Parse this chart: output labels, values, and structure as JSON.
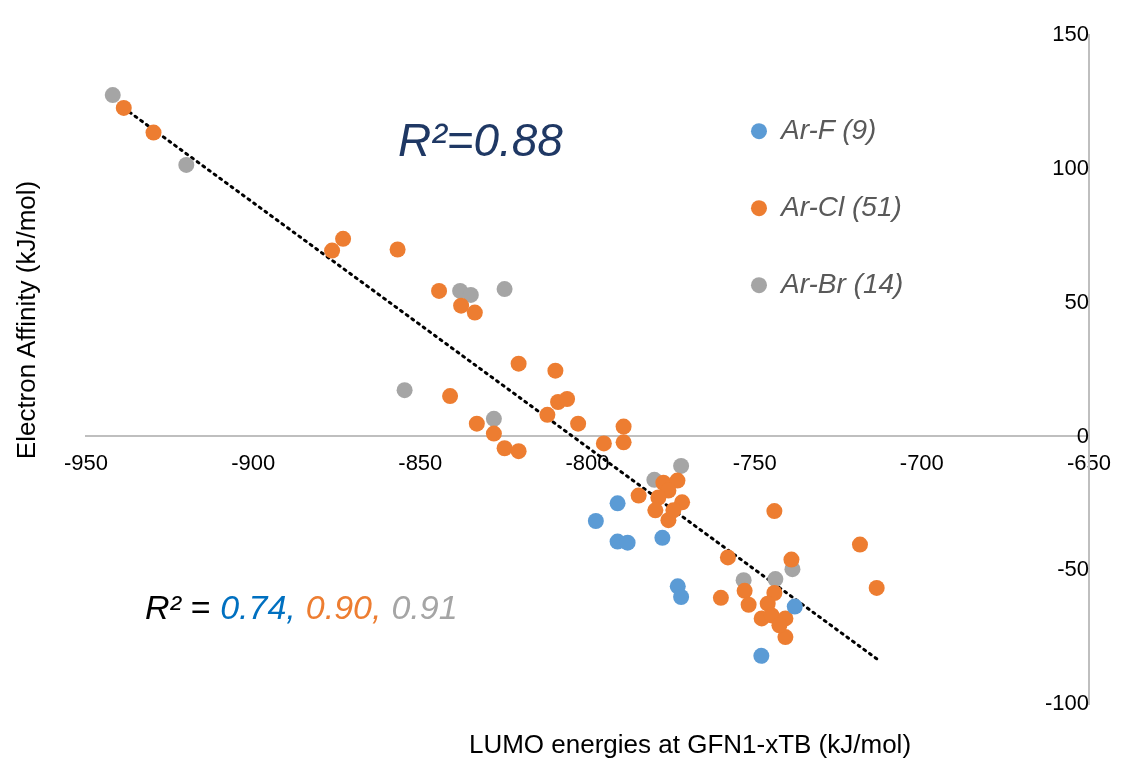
{
  "chart_data": {
    "type": "scatter",
    "xlabel": "LUMO energies at GFN1-xTB (kJ/mol)",
    "ylabel": "Electron Affinity (kJ/mol)",
    "xlim": [
      -950,
      -650
    ],
    "xticks": [
      -950,
      -900,
      -850,
      -800,
      -750,
      -700,
      -650
    ],
    "ylim": [
      -100,
      150
    ],
    "yticks": [
      -100,
      -50,
      0,
      50,
      100,
      150
    ],
    "grid": false,
    "legend": "top right",
    "marker": "circle",
    "annotations": [
      "R²=0.88",
      "R² =",
      "0.74,",
      "0.90,",
      "0.91"
    ],
    "series": [
      {
        "name": "Ar-F (9)",
        "color": "#5b9bd5",
        "x": [
          -797.5,
          -791,
          -791,
          -788,
          -777.6,
          -773,
          -772,
          -748,
          -738
        ],
        "values": [
          -31.6,
          -25,
          -39.3,
          -39.7,
          -37.9,
          -56,
          -60,
          -82,
          -63.6
        ]
      },
      {
        "name": "Ar-Cl (51)",
        "color": "#ed7d31",
        "x": [
          -938.7,
          -929.8,
          -873.1,
          -876.4,
          -856.8,
          -844.4,
          -837.8,
          -833.7,
          -820.6,
          -809.6,
          -841.1,
          -833.1,
          -828,
          -824.8,
          -820.6,
          -812,
          -808.8,
          -806.1,
          -802.8,
          -789.2,
          -795.1,
          -789.2,
          -784.7,
          -777.3,
          -773.1,
          -775.8,
          -778.8,
          -771.7,
          -779.7,
          -775.8,
          -774.3,
          -744.1,
          -718.5,
          -713.5,
          -758,
          -739,
          -753,
          -760.1,
          -751.8,
          -744.1,
          -746.1,
          -747.9,
          -744.9,
          -740.8,
          -740.8,
          -742.6
        ],
        "values": [
          122.8,
          113.6,
          73.9,
          69.5,
          69.9,
          54.4,
          48.9,
          46.3,
          27.2,
          24.6,
          15.1,
          4.8,
          1.1,
          -4.4,
          -5.5,
          8.1,
          12.9,
          14,
          4.8,
          3.7,
          -2.6,
          -2.2,
          -22.1,
          -17.3,
          -16.5,
          -20.2,
          -22.8,
          -24.6,
          -27.6,
          -31.3,
          -27.6,
          -27.9,
          -40.4,
          -56.6,
          -45.2,
          -46,
          -57.7,
          -60.3,
          -62.9,
          -58.5,
          -62.5,
          -68,
          -66.9,
          -68,
          -75,
          -70.6
        ]
      },
      {
        "name": "Ar-Br (14)",
        "color": "#a5a5a5",
        "x": [
          -942,
          -920,
          -854.7,
          -838.1,
          -834.9,
          -824.8,
          -828,
          -780,
          -772,
          -753.3,
          -743.8,
          -738.7
        ],
        "values": [
          127.6,
          101.5,
          17.3,
          54.4,
          52.9,
          55.1,
          6.6,
          -16.2,
          -11,
          -53.7,
          -53.3,
          -49.6
        ]
      },
      {
        "type": "line",
        "color": "#000000",
        "line_style": "dotted",
        "marker": "none",
        "x": [
          -938.7,
          -713.5
        ],
        "values": [
          122.8,
          -83.1
        ]
      }
    ]
  }
}
